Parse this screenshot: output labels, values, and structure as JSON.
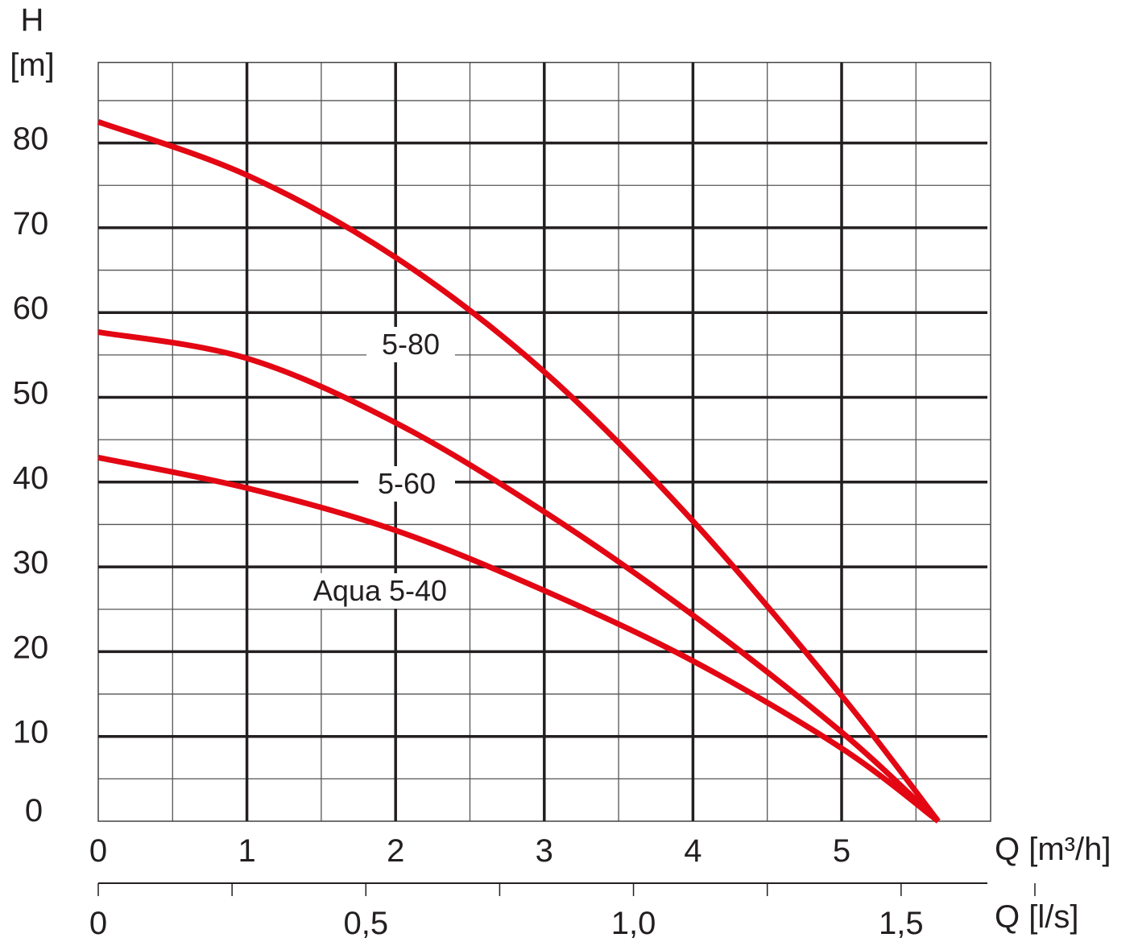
{
  "chart_data": {
    "type": "line",
    "title": "",
    "ylabel": "H",
    "yunit": "[m]",
    "xlabel": "Q [m³/h]",
    "x2label": "Q [l/s]",
    "xlim": [
      0,
      5.95
    ],
    "ylim": [
      0,
      89.5
    ],
    "grid": true,
    "xticks": [
      "0",
      "1",
      "2",
      "3",
      "4",
      "5"
    ],
    "xtick_values": [
      0,
      1,
      2,
      3,
      4,
      5
    ],
    "x2ticks": [
      "0",
      "0,5",
      "1,0",
      "1,5"
    ],
    "x2tick_values": [
      0,
      0.5,
      1.0,
      1.5
    ],
    "yticks": [
      "0",
      "10",
      "20",
      "30",
      "40",
      "50",
      "60",
      "70",
      "80"
    ],
    "ytick_values": [
      0,
      10,
      20,
      30,
      40,
      50,
      60,
      70,
      80
    ],
    "line_color": "#e30613",
    "series": [
      {
        "name": "5-80",
        "x": [
          0,
          1,
          2,
          3,
          4,
          5,
          5.65
        ],
        "y": [
          82.5,
          76.2,
          66.5,
          53,
          35.4,
          14.8,
          0
        ]
      },
      {
        "name": "5-60",
        "x": [
          0,
          1,
          2,
          3,
          4,
          5,
          5.65
        ],
        "y": [
          57.7,
          54.6,
          47,
          36.5,
          24.3,
          10.5,
          0
        ]
      },
      {
        "name": "Aqua 5-40",
        "x": [
          0,
          1,
          2,
          3,
          4,
          5,
          5.65
        ],
        "y": [
          42.9,
          39.3,
          34.3,
          27.2,
          18.9,
          8.6,
          0
        ]
      }
    ]
  }
}
